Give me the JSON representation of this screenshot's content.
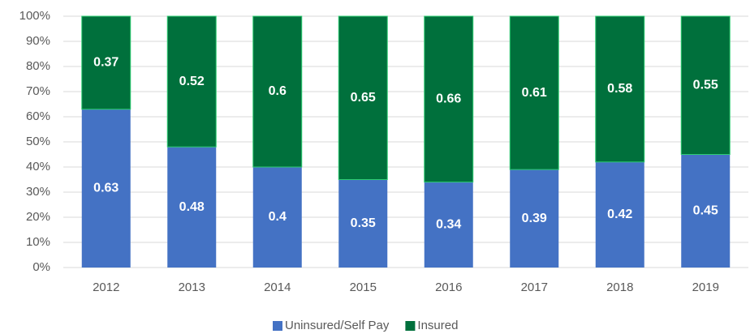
{
  "chart_data": {
    "type": "stacked_bar",
    "categories": [
      "2012",
      "2013",
      "2014",
      "2015",
      "2016",
      "2017",
      "2018",
      "2019"
    ],
    "series": [
      {
        "name": "Uninsured/Self Pay",
        "color": "#4472c4",
        "values": [
          0.63,
          0.48,
          0.4,
          0.35,
          0.34,
          0.39,
          0.42,
          0.45
        ]
      },
      {
        "name": "Insured",
        "color": "#00703c",
        "values": [
          0.37,
          0.52,
          0.6,
          0.65,
          0.66,
          0.61,
          0.58,
          0.55
        ]
      }
    ],
    "ylim": [
      0,
      1
    ],
    "yticks": [
      {
        "value": 0,
        "label": "0%"
      },
      {
        "value": 0.1,
        "label": "10%"
      },
      {
        "value": 0.2,
        "label": "20%"
      },
      {
        "value": 0.3,
        "label": "30%"
      },
      {
        "value": 0.4,
        "label": "40%"
      },
      {
        "value": 0.5,
        "label": "50%"
      },
      {
        "value": 0.6,
        "label": "60%"
      },
      {
        "value": 0.7,
        "label": "70%"
      },
      {
        "value": 0.8,
        "label": "80%"
      },
      {
        "value": 0.9,
        "label": "90%"
      },
      {
        "value": 1,
        "label": "100%"
      }
    ],
    "grid": true,
    "legend": "bottom"
  }
}
